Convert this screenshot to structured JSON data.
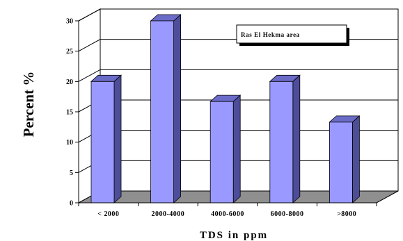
{
  "chart_data": {
    "type": "bar",
    "title": "",
    "xlabel": "TDS  in  ppm",
    "ylabel": "Percent %",
    "categories": [
      "< 2000",
      "2000-4000",
      "4000-6000",
      "6000-8000",
      ">8000"
    ],
    "series": [
      {
        "name": "Ras El Hekma area",
        "values": [
          20,
          30,
          16.7,
          20,
          13.3
        ]
      }
    ],
    "ylim": [
      0,
      30
    ],
    "yticks": [
      "0",
      "5",
      "10",
      "15",
      "20",
      "25",
      "30"
    ],
    "grid": true,
    "legend_position": "top-right",
    "colors": {
      "bar_front": "#9999ff",
      "bar_side": "#4d4d99",
      "bar_top": "#6b6bc8",
      "floor": "#8f8f8f",
      "wall": "#ffffff",
      "gridline": "#000000"
    }
  }
}
